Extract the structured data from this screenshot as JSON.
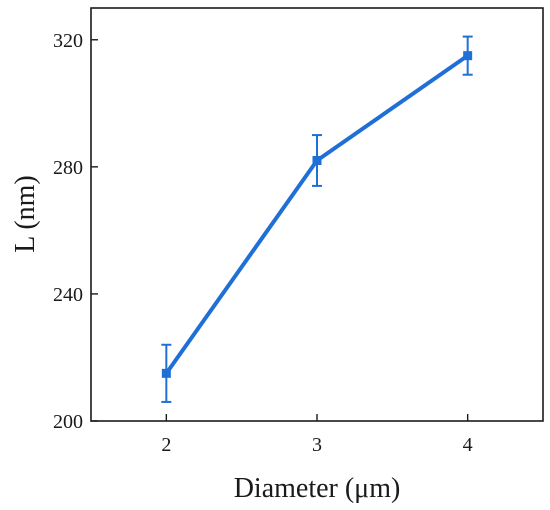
{
  "chart_data": {
    "type": "line",
    "title": "",
    "xlabel": "Diameter (μm)",
    "ylabel": "L (nm)",
    "x": [
      2,
      3,
      4
    ],
    "xticks": [
      2,
      3,
      4
    ],
    "xtick_labels": [
      "2",
      "3",
      "4"
    ],
    "xlim": [
      1.5,
      4.5
    ],
    "ylim": [
      200,
      330
    ],
    "yticks": [
      200,
      240,
      280,
      320
    ],
    "ytick_labels": [
      "200",
      "240",
      "280",
      "320"
    ],
    "grid": false,
    "series": [
      {
        "values": [
          215,
          282,
          315
        ],
        "error": [
          9,
          8,
          6
        ],
        "marker": "square",
        "color": "#1f6fd6"
      }
    ]
  }
}
